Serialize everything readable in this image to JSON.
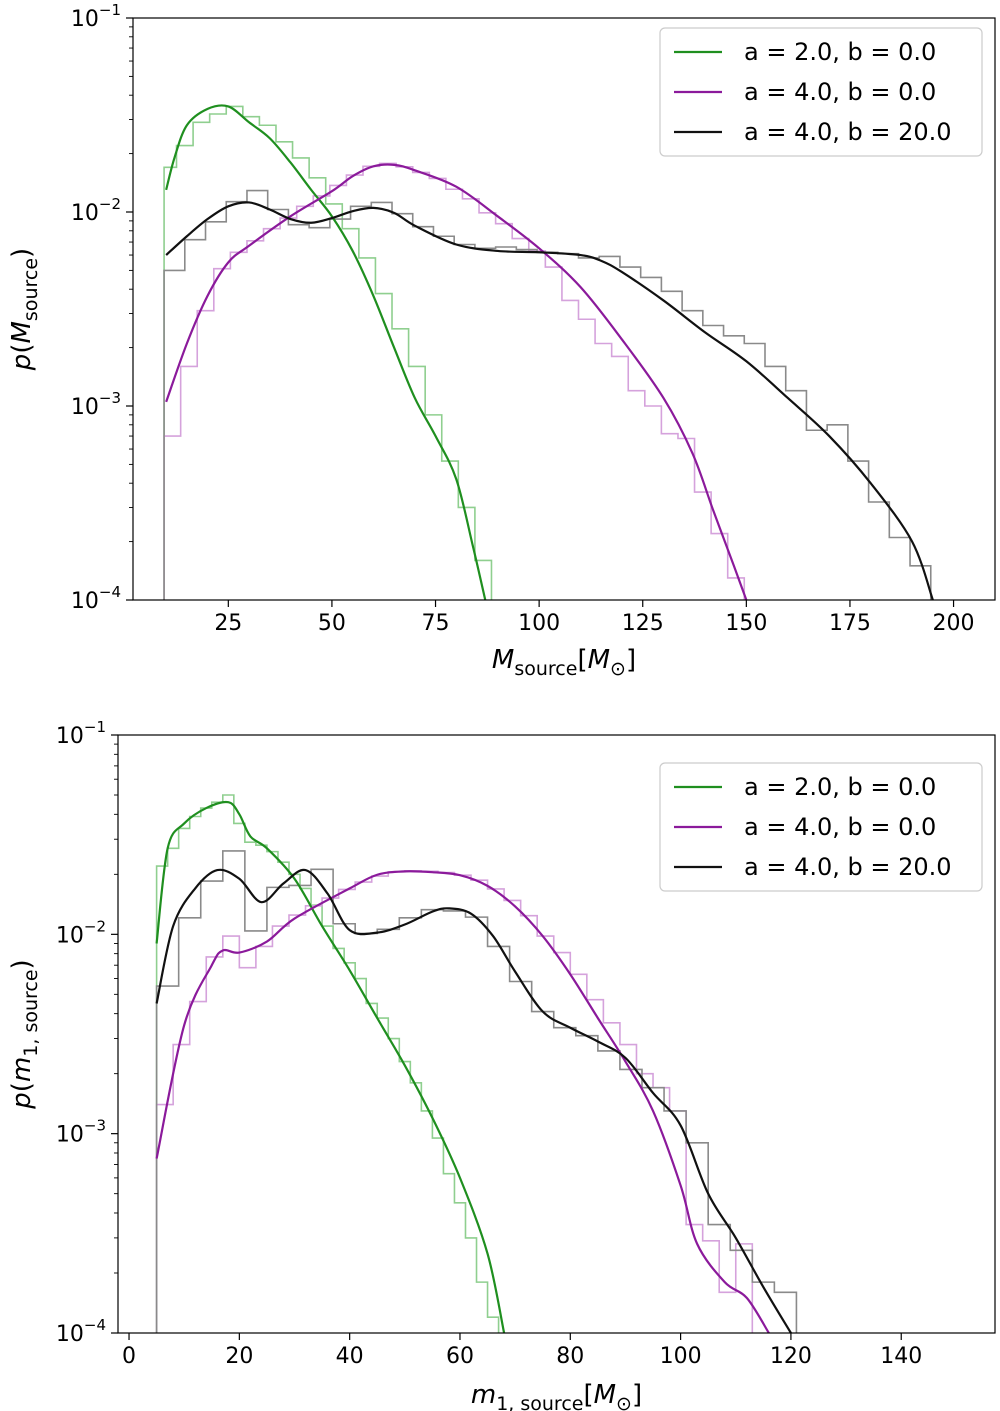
{
  "chart_data": [
    {
      "type": "line",
      "xlabel": "M_source[M_⊙]",
      "ylabel": "p(M_source)",
      "xlim": [
        2,
        210
      ],
      "ylim": [
        0.0001,
        0.1
      ],
      "yscale": "log",
      "grid": false,
      "legend_position": "top-right",
      "x_ticks": [
        25,
        50,
        75,
        100,
        125,
        150,
        175,
        200
      ],
      "y_ticks": [
        {
          "value": 0.1,
          "base": "10",
          "exp": "−1"
        },
        {
          "value": 0.01,
          "base": "10",
          "exp": "−2"
        },
        {
          "value": 0.001,
          "base": "10",
          "exp": "−3"
        },
        {
          "value": 0.0001,
          "base": "10",
          "exp": "−4"
        }
      ],
      "series": [
        {
          "name": "a = 2.0, b = 0.0",
          "color": "#1f8f1f",
          "hist_color": "#8fcf8f",
          "x": [
            10,
            12,
            15,
            20,
            25,
            30,
            35,
            40,
            45,
            50,
            55,
            60,
            65,
            70,
            75,
            80,
            84,
            87
          ],
          "y": [
            0.013,
            0.019,
            0.028,
            0.034,
            0.035,
            0.029,
            0.024,
            0.018,
            0.013,
            0.0095,
            0.0063,
            0.0037,
            0.002,
            0.0011,
            0.0007,
            0.00042,
            0.00019,
            0.0001
          ],
          "hist_edges": [
            9.5,
            12.5,
            16.5,
            20.5,
            24.5,
            28.5,
            32.5,
            36.5,
            40.5,
            44.5,
            48.5,
            52.5,
            56.5,
            60.5,
            64.5,
            68.5,
            72.5,
            76.5,
            80.5,
            84.5,
            88.5
          ],
          "hist_values": [
            0.017,
            0.022,
            0.029,
            0.032,
            0.035,
            0.031,
            0.028,
            0.023,
            0.019,
            0.015,
            0.011,
            0.0082,
            0.0058,
            0.0038,
            0.0025,
            0.0016,
            0.0009,
            0.00052,
            0.0003,
            0.00016
          ]
        },
        {
          "name": "a = 4.0, b = 0.0",
          "color": "#8b1a9b",
          "hist_color": "#d5a2dc",
          "x": [
            10,
            15,
            20,
            25,
            30,
            40,
            50,
            55,
            60,
            65,
            70,
            80,
            90,
            100,
            110,
            120,
            130,
            137,
            142,
            147,
            150
          ],
          "y": [
            0.00105,
            0.0021,
            0.0037,
            0.0055,
            0.0067,
            0.0095,
            0.0128,
            0.0153,
            0.0172,
            0.0175,
            0.0164,
            0.0135,
            0.0095,
            0.0065,
            0.0041,
            0.0022,
            0.0011,
            0.00057,
            0.00029,
            0.00015,
            0.0001
          ],
          "hist_edges": [
            9.5,
            13.5,
            17.5,
            21.5,
            25.5,
            29.5,
            33.5,
            37.5,
            41.5,
            45.5,
            49.5,
            53.5,
            57.5,
            61.5,
            65.5,
            69.5,
            73.5,
            77.5,
            81.5,
            85.5,
            89.5,
            93.5,
            97.5,
            101.5,
            105.5,
            109.5,
            113.5,
            117.5,
            121.5,
            125.5,
            129.5,
            133.5,
            137.5,
            141.5,
            145.5,
            149.5
          ],
          "hist_values": [
            0.0007,
            0.0016,
            0.0031,
            0.0051,
            0.0062,
            0.0071,
            0.0082,
            0.0093,
            0.0107,
            0.0121,
            0.0137,
            0.0155,
            0.0172,
            0.0178,
            0.0171,
            0.016,
            0.0149,
            0.0131,
            0.0117,
            0.0099,
            0.0087,
            0.0073,
            0.0063,
            0.0052,
            0.0035,
            0.0028,
            0.0021,
            0.0018,
            0.0012,
            0.001,
            0.00072,
            0.00068,
            0.00036,
            0.00022,
            0.00013
          ]
        },
        {
          "name": "a = 4.0, b = 20.0",
          "color": "#111111",
          "hist_color": "#8a8a8a",
          "x": [
            10,
            15,
            20,
            25,
            30,
            35,
            40,
            45,
            50,
            55,
            60,
            65,
            70,
            80,
            90,
            100,
            110,
            115,
            120,
            130,
            140,
            150,
            160,
            170,
            180,
            190,
            195
          ],
          "y": [
            0.006,
            0.0075,
            0.0092,
            0.0107,
            0.0112,
            0.0103,
            0.0092,
            0.0088,
            0.0093,
            0.0101,
            0.0105,
            0.0099,
            0.0085,
            0.0068,
            0.0063,
            0.0062,
            0.006,
            0.0056,
            0.0049,
            0.0035,
            0.0024,
            0.0017,
            0.0011,
            0.0007,
            0.0004,
            0.0002,
            0.0001
          ],
          "hist_edges": [
            9.5,
            14.5,
            19.5,
            24.5,
            29.5,
            34.5,
            39.5,
            44.5,
            49.5,
            54.5,
            59.5,
            64.5,
            69.5,
            74.5,
            79.5,
            84.5,
            89.5,
            94.5,
            99.5,
            104.5,
            109.5,
            114.5,
            119.5,
            124.5,
            129.5,
            134.5,
            139.5,
            144.5,
            149.5,
            154.5,
            159.5,
            164.5,
            169.5,
            174.5,
            179.5,
            184.5,
            189.5,
            194.5
          ],
          "hist_values": [
            0.005,
            0.0072,
            0.0089,
            0.0113,
            0.0129,
            0.0103,
            0.0086,
            0.0083,
            0.0092,
            0.0107,
            0.0112,
            0.0098,
            0.0084,
            0.0075,
            0.0068,
            0.0065,
            0.0066,
            0.0064,
            0.0062,
            0.0061,
            0.0058,
            0.0059,
            0.0052,
            0.0046,
            0.0039,
            0.0031,
            0.0026,
            0.0023,
            0.0021,
            0.0016,
            0.0012,
            0.00075,
            0.0008,
            0.00052,
            0.00032,
            0.00021,
            0.00015
          ]
        }
      ]
    },
    {
      "type": "line",
      "xlabel": "m_1,source[M_⊙]",
      "ylabel": "p(m_1,source)",
      "xlim": [
        -2,
        157
      ],
      "ylim": [
        0.0001,
        0.1
      ],
      "yscale": "log",
      "grid": false,
      "legend_position": "top-right",
      "x_ticks": [
        0,
        20,
        40,
        60,
        80,
        100,
        120,
        140
      ],
      "y_ticks": [
        {
          "value": 0.1,
          "base": "10",
          "exp": "−1"
        },
        {
          "value": 0.01,
          "base": "10",
          "exp": "−2"
        },
        {
          "value": 0.001,
          "base": "10",
          "exp": "−3"
        },
        {
          "value": 0.0001,
          "base": "10",
          "exp": "−4"
        }
      ],
      "series": [
        {
          "name": "a = 2.0, b = 0.0",
          "color": "#1f8f1f",
          "hist_color": "#8fcf8f",
          "x": [
            5,
            7,
            10,
            14,
            18,
            20,
            22,
            25,
            30,
            35,
            40,
            45,
            50,
            55,
            60,
            65,
            68
          ],
          "y": [
            0.009,
            0.027,
            0.036,
            0.043,
            0.046,
            0.04,
            0.031,
            0.027,
            0.019,
            0.011,
            0.0066,
            0.0038,
            0.0022,
            0.0012,
            0.0006,
            0.00025,
            0.0001
          ],
          "hist_edges": [
            5,
            7,
            9,
            11,
            13,
            15,
            17,
            19,
            21,
            23,
            25,
            27,
            29,
            31,
            33,
            35,
            37,
            39,
            41,
            43,
            45,
            47,
            49,
            51,
            53,
            55,
            57,
            59,
            61,
            63,
            65,
            67
          ],
          "hist_values": [
            0.022,
            0.027,
            0.034,
            0.039,
            0.043,
            0.046,
            0.05,
            0.036,
            0.029,
            0.028,
            0.026,
            0.023,
            0.02,
            0.017,
            0.014,
            0.011,
            0.0085,
            0.0072,
            0.006,
            0.0045,
            0.0038,
            0.003,
            0.0023,
            0.0018,
            0.0013,
            0.00095,
            0.00063,
            0.00045,
            0.0003,
            0.00018,
            0.00012
          ]
        },
        {
          "name": "a = 4.0, b = 0.0",
          "color": "#8b1a9b",
          "hist_color": "#d5a2dc",
          "x": [
            5,
            10,
            15,
            17,
            20,
            25,
            30,
            40,
            45,
            50,
            55,
            60,
            65,
            70,
            75,
            80,
            85,
            90,
            95,
            100,
            103,
            108,
            112,
            116
          ],
          "y": [
            0.00075,
            0.0035,
            0.007,
            0.0083,
            0.0081,
            0.0092,
            0.012,
            0.017,
            0.0199,
            0.0207,
            0.0205,
            0.0198,
            0.0175,
            0.0138,
            0.0098,
            0.0063,
            0.0038,
            0.0023,
            0.0013,
            0.00055,
            0.00028,
            0.00018,
            0.00015,
            0.0001
          ],
          "hist_edges": [
            5,
            8,
            11,
            14,
            17,
            20,
            23,
            26,
            29,
            32,
            35,
            38,
            41,
            44,
            47,
            50,
            53,
            56,
            59,
            62,
            65,
            68,
            71,
            74,
            77,
            80,
            83,
            86,
            89,
            92,
            95,
            98,
            101,
            104,
            107,
            110,
            113
          ],
          "hist_values": [
            0.0014,
            0.0028,
            0.0046,
            0.0077,
            0.0098,
            0.0068,
            0.0087,
            0.011,
            0.0125,
            0.0139,
            0.0152,
            0.0168,
            0.0183,
            0.0196,
            0.0206,
            0.0208,
            0.0207,
            0.0204,
            0.0198,
            0.0187,
            0.0169,
            0.0148,
            0.0124,
            0.0098,
            0.0081,
            0.0063,
            0.0047,
            0.0036,
            0.0028,
            0.002,
            0.0017,
            0.0013,
            0.00035,
            0.00029,
            0.00016,
            0.00028
          ]
        },
        {
          "name": "a = 4.0, b = 20.0",
          "color": "#111111",
          "hist_color": "#8a8a8a",
          "x": [
            5,
            8,
            12,
            16,
            20,
            24,
            28,
            32,
            36,
            40,
            45,
            50,
            55,
            58,
            62,
            66,
            70,
            75,
            80,
            85,
            90,
            95,
            100,
            105,
            110,
            115,
            120
          ],
          "y": [
            0.0045,
            0.011,
            0.017,
            0.021,
            0.019,
            0.0145,
            0.018,
            0.021,
            0.016,
            0.0105,
            0.0102,
            0.0112,
            0.013,
            0.0135,
            0.0127,
            0.0098,
            0.0065,
            0.0041,
            0.0034,
            0.0029,
            0.0024,
            0.0016,
            0.0011,
            0.0005,
            0.0003,
            0.00017,
            0.0001
          ],
          "hist_edges": [
            5,
            9,
            13,
            17,
            21,
            25,
            29,
            33,
            37,
            41,
            45,
            49,
            53,
            57,
            61,
            65,
            69,
            73,
            77,
            81,
            85,
            89,
            93,
            97,
            101,
            105,
            109,
            113,
            117,
            121
          ],
          "hist_values": [
            0.0055,
            0.0121,
            0.0185,
            0.0262,
            0.0104,
            0.0172,
            0.0176,
            0.0212,
            0.0113,
            0.0101,
            0.0106,
            0.0121,
            0.0133,
            0.0131,
            0.0122,
            0.0087,
            0.0058,
            0.0041,
            0.0034,
            0.0031,
            0.0026,
            0.0021,
            0.0017,
            0.0013,
            0.0009,
            0.00035,
            0.00026,
            0.00018,
            0.00016
          ]
        }
      ]
    }
  ]
}
